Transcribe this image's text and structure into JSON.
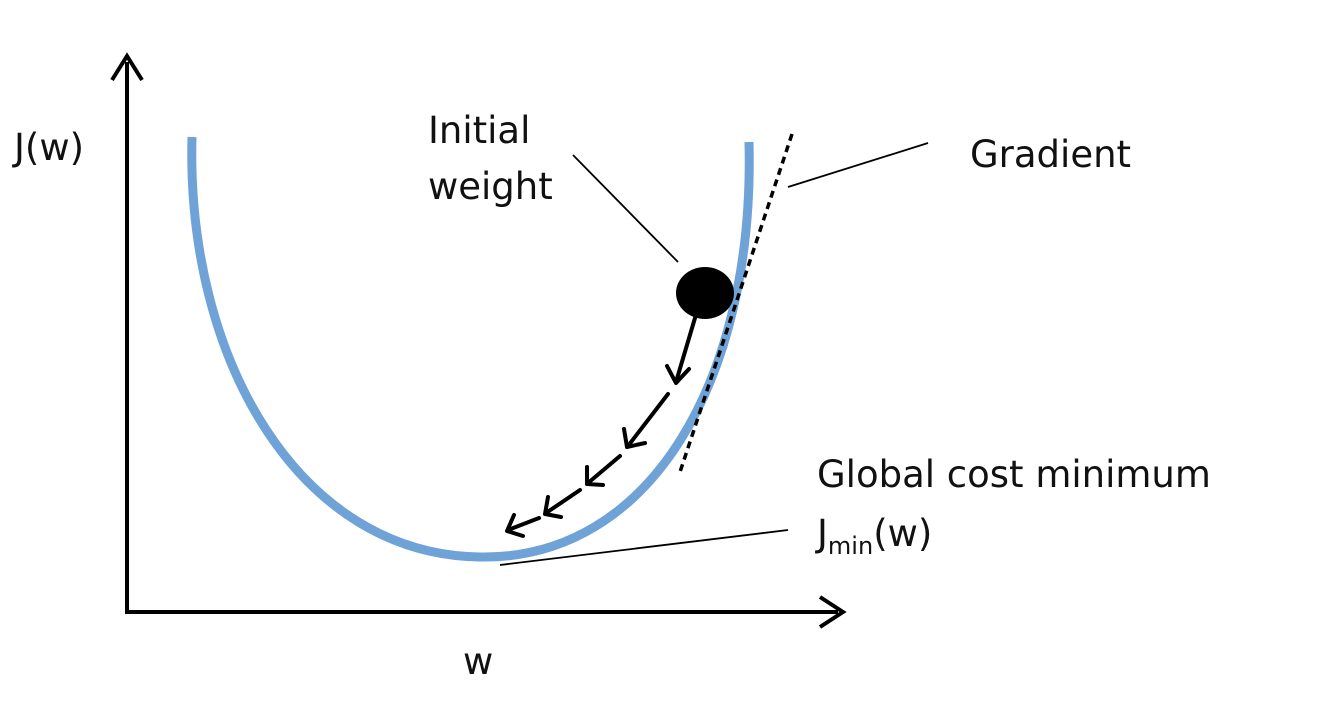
{
  "diagram": {
    "y_axis_label": "J(w)",
    "x_axis_label": "w",
    "initial_weight": {
      "line1": "Initial",
      "line2": "weight"
    },
    "gradient_label": "Gradient",
    "global_min": {
      "title": "Global cost minimum",
      "symbol_main": "J",
      "symbol_sub": "min",
      "symbol_tail": "(w)"
    },
    "colors": {
      "curve": "#6fa3d8",
      "ink": "#000000"
    }
  }
}
